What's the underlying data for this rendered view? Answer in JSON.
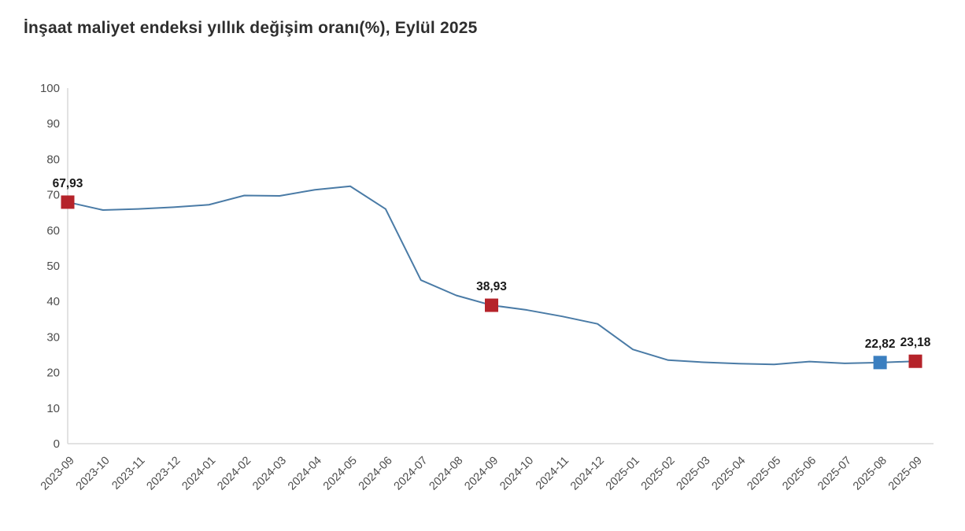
{
  "chart_data": {
    "type": "line",
    "title": "İnşaat maliyet endeksi yıllık değişim oranı(%), Eylül 2025",
    "categories": [
      "2023-09",
      "2023-10",
      "2023-11",
      "2023-12",
      "2024-01",
      "2024-02",
      "2024-03",
      "2024-04",
      "2024-05",
      "2024-06",
      "2024-07",
      "2024-08",
      "2024-09",
      "2024-10",
      "2024-11",
      "2024-12",
      "2025-01",
      "2025-02",
      "2025-03",
      "2025-04",
      "2025-05",
      "2025-06",
      "2025-07",
      "2025-08",
      "2025-09"
    ],
    "series": [
      {
        "name": "Yıllık değişim oranı (%)",
        "values": [
          67.93,
          65.7,
          66.0,
          66.5,
          67.2,
          69.8,
          69.7,
          71.4,
          72.4,
          66.0,
          46.0,
          41.7,
          38.93,
          37.6,
          35.8,
          33.7,
          26.5,
          23.5,
          22.9,
          22.5,
          22.3,
          23.1,
          22.6,
          22.82,
          23.18
        ]
      }
    ],
    "ylim": [
      0,
      100
    ],
    "ytick_step": 10,
    "grid": false,
    "legend": "none",
    "marked_points": [
      {
        "category": "2023-09",
        "index": 0,
        "value": 67.93,
        "label": "67,93",
        "marker_color": "#b5232a"
      },
      {
        "category": "2024-09",
        "index": 12,
        "value": 38.93,
        "label": "38,93",
        "marker_color": "#b5232a"
      },
      {
        "category": "2025-08",
        "index": 23,
        "value": 22.82,
        "label": "22,82",
        "marker_color": "#3b7fc0"
      },
      {
        "category": "2025-09",
        "index": 24,
        "value": 23.18,
        "label": "23,18",
        "marker_color": "#b5232a"
      }
    ],
    "colors": {
      "line": "#4a7ba6",
      "axis": "#d9d9d9",
      "tick_label": "#4d4d4d",
      "title": "#2e2e2e",
      "data_label": "#1a1a1a",
      "background": "#ffffff"
    }
  }
}
